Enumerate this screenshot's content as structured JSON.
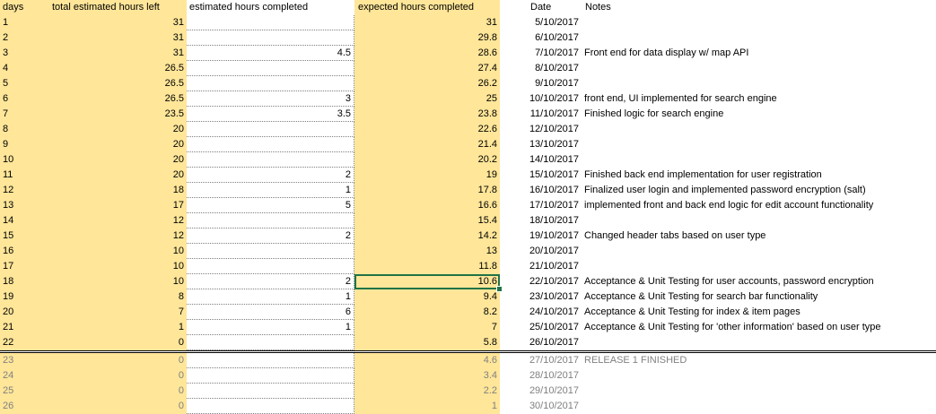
{
  "headers": {
    "days": "days",
    "total_left": "total estimated hours left",
    "est_completed": "estimated hours completed",
    "expected_completed": "expected hours completed",
    "date": "Date",
    "notes": "Notes"
  },
  "rows": [
    {
      "day": "1",
      "left": "31",
      "done": "",
      "expected": "31",
      "date": "5/10/2017",
      "note": ""
    },
    {
      "day": "2",
      "left": "31",
      "done": "",
      "expected": "29.8",
      "date": "6/10/2017",
      "note": ""
    },
    {
      "day": "3",
      "left": "31",
      "done": "4.5",
      "expected": "28.6",
      "date": "7/10/2017",
      "note": "Front end for data display w/ map API"
    },
    {
      "day": "4",
      "left": "26.5",
      "done": "",
      "expected": "27.4",
      "date": "8/10/2017",
      "note": ""
    },
    {
      "day": "5",
      "left": "26.5",
      "done": "",
      "expected": "26.2",
      "date": "9/10/2017",
      "note": ""
    },
    {
      "day": "6",
      "left": "26.5",
      "done": "3",
      "expected": "25",
      "date": "10/10/2017",
      "note": "front end, UI implemented for search engine"
    },
    {
      "day": "7",
      "left": "23.5",
      "done": "3.5",
      "expected": "23.8",
      "date": "11/10/2017",
      "note": "Finished logic for search engine"
    },
    {
      "day": "8",
      "left": "20",
      "done": "",
      "expected": "22.6",
      "date": "12/10/2017",
      "note": ""
    },
    {
      "day": "9",
      "left": "20",
      "done": "",
      "expected": "21.4",
      "date": "13/10/2017",
      "note": ""
    },
    {
      "day": "10",
      "left": "20",
      "done": "",
      "expected": "20.2",
      "date": "14/10/2017",
      "note": ""
    },
    {
      "day": "11",
      "left": "20",
      "done": "2",
      "expected": "19",
      "date": "15/10/2017",
      "note": "Finished back end implementation for user registration"
    },
    {
      "day": "12",
      "left": "18",
      "done": "1",
      "expected": "17.8",
      "date": "16/10/2017",
      "note": "Finalized user login and implemented password encryption (salt)"
    },
    {
      "day": "13",
      "left": "17",
      "done": "5",
      "expected": "16.6",
      "date": "17/10/2017",
      "note": "implemented front and back end logic for edit account functionality"
    },
    {
      "day": "14",
      "left": "12",
      "done": "",
      "expected": "15.4",
      "date": "18/10/2017",
      "note": ""
    },
    {
      "day": "15",
      "left": "12",
      "done": "2",
      "expected": "14.2",
      "date": "19/10/2017",
      "note": "Changed header tabs based on user type"
    },
    {
      "day": "16",
      "left": "10",
      "done": "",
      "expected": "13",
      "date": "20/10/2017",
      "note": ""
    },
    {
      "day": "17",
      "left": "10",
      "done": "",
      "expected": "11.8",
      "date": "21/10/2017",
      "note": ""
    },
    {
      "day": "18",
      "left": "10",
      "done": "2",
      "expected": "10.6",
      "date": "22/10/2017",
      "note": "Acceptance & Unit Testing  for user accounts, password encryption"
    },
    {
      "day": "19",
      "left": "8",
      "done": "1",
      "expected": "9.4",
      "date": "23/10/2017",
      "note": "Acceptance & Unit Testing for search bar functionality"
    },
    {
      "day": "20",
      "left": "7",
      "done": "6",
      "expected": "8.2",
      "date": "24/10/2017",
      "note": "Acceptance & Unit Testing for index & item pages"
    },
    {
      "day": "21",
      "left": "1",
      "done": "1",
      "expected": "7",
      "date": "25/10/2017",
      "note": "Acceptance & Unit Testing for 'other information' based on user type"
    },
    {
      "day": "22",
      "left": "0",
      "done": "",
      "expected": "5.8",
      "date": "26/10/2017",
      "note": ""
    },
    {
      "day": "23",
      "left": "0",
      "done": "",
      "expected": "4.6",
      "date": "27/10/2017",
      "note": "RELEASE 1 FINISHED"
    },
    {
      "day": "24",
      "left": "0",
      "done": "",
      "expected": "3.4",
      "date": "28/10/2017",
      "note": ""
    },
    {
      "day": "25",
      "left": "0",
      "done": "",
      "expected": "2.2",
      "date": "29/10/2017",
      "note": ""
    },
    {
      "day": "26",
      "left": "0",
      "done": "",
      "expected": "1",
      "date": "30/10/2017",
      "note": ""
    }
  ],
  "colors": {
    "highlight": "#ffe699",
    "selection": "#217346",
    "muted_text": "#808080"
  }
}
